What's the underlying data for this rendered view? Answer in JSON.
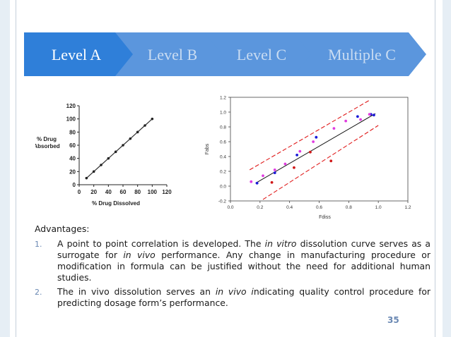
{
  "tabs": [
    {
      "label": "Level A",
      "active": true
    },
    {
      "label": "Level B",
      "active": false
    },
    {
      "label": "Level C",
      "active": false
    },
    {
      "label": "Multiple C",
      "active": false
    }
  ],
  "colors": {
    "tab_active": "#2f7fd9",
    "tab_inactive": "#5b96dd",
    "tab_text_active": "#ffffff",
    "tab_text_inactive": "#c9dcf2",
    "accent_number": "#6a88b3"
  },
  "chart_data": [
    {
      "type": "line",
      "xlabel": "% Drug Dissolved",
      "ylabel": "% Drug Absorbed",
      "xlim": [
        0,
        120
      ],
      "ylim": [
        0,
        120
      ],
      "x_ticks": [
        0,
        20,
        40,
        60,
        80,
        100,
        120
      ],
      "y_ticks": [
        0,
        20,
        40,
        60,
        80,
        100,
        120
      ],
      "series": [
        {
          "x": [
            10,
            20,
            30,
            40,
            50,
            60,
            70,
            80,
            90,
            100
          ],
          "values": [
            10,
            20,
            30,
            40,
            50,
            60,
            70,
            80,
            90,
            100
          ]
        }
      ]
    },
    {
      "type": "scatter",
      "xlabel": "Fdiss",
      "ylabel": "Fabs",
      "xlim": [
        0.0,
        1.2
      ],
      "ylim": [
        -0.2,
        1.2
      ],
      "x_ticks": [
        "0.0",
        "0.2",
        "0.4",
        "0.6",
        "0.8",
        "1.0",
        "1.2"
      ],
      "y_ticks": [
        "-0.2",
        "0.0",
        "0.2",
        "0.4",
        "0.6",
        "0.8",
        "1.0",
        "1.2"
      ],
      "fit_line": {
        "x": [
          0.17,
          0.98
        ],
        "y": [
          0.04,
          0.98
        ]
      },
      "band_upper": {
        "x": [
          0.13,
          0.94
        ],
        "y": [
          0.22,
          1.16
        ]
      },
      "band_lower": {
        "x": [
          0.22,
          1.0
        ],
        "y": [
          -0.18,
          0.82
        ]
      },
      "series": [
        {
          "color": "#1a1ad8",
          "points": [
            [
              0.18,
              0.04
            ],
            [
              0.3,
              0.18
            ],
            [
              0.45,
              0.42
            ],
            [
              0.58,
              0.66
            ],
            [
              0.86,
              0.94
            ],
            [
              0.95,
              0.97
            ],
            [
              0.97,
              0.96
            ]
          ]
        },
        {
          "color": "#e03ce0",
          "points": [
            [
              0.14,
              0.06
            ],
            [
              0.22,
              0.14
            ],
            [
              0.3,
              0.22
            ],
            [
              0.37,
              0.3
            ],
            [
              0.47,
              0.47
            ],
            [
              0.56,
              0.6
            ],
            [
              0.7,
              0.78
            ],
            [
              0.78,
              0.88
            ],
            [
              0.88,
              0.9
            ],
            [
              0.94,
              0.97
            ]
          ]
        },
        {
          "color": "#d01818",
          "points": [
            [
              0.28,
              0.05
            ],
            [
              0.43,
              0.25
            ],
            [
              0.54,
              0.46
            ],
            [
              0.68,
              0.34
            ]
          ]
        }
      ]
    }
  ],
  "advantages": {
    "title": "Advantages:",
    "items": [
      {
        "num": "1.",
        "parts": [
          {
            "t": "A point to point correlation is developed. The ",
            "i": false
          },
          {
            "t": "in vitro",
            "i": true
          },
          {
            "t": " dissolution curve serves as a surrogate for ",
            "i": false
          },
          {
            "t": "in vivo",
            "i": true
          },
          {
            "t": " performance. Any change in manufacturing procedure or modification in formula can be justified without the need for additional human studies.",
            "i": false
          }
        ]
      },
      {
        "num": "2.",
        "parts": [
          {
            "t": "The in vivo dissolution serves an ",
            "i": false
          },
          {
            "t": "in vivo i",
            "i": true
          },
          {
            "t": "ndicating quality control procedure for predicting dosage form’s performance.",
            "i": false
          }
        ]
      }
    ]
  },
  "page_number": "35"
}
